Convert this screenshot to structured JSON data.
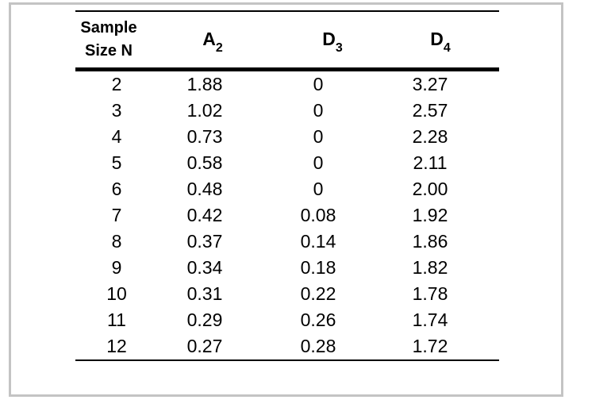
{
  "table": {
    "headers": {
      "sample_size": {
        "line1": "Sample",
        "line2": "Size N"
      },
      "a2": {
        "base": "A",
        "sub": "2"
      },
      "d3": {
        "base": "D",
        "sub": "3"
      },
      "d4": {
        "base": "D",
        "sub": "4"
      }
    }
  },
  "chart_data": {
    "type": "table",
    "columns": [
      "Sample Size N",
      "A₂",
      "D₃",
      "D₄"
    ],
    "column_keys": [
      "sample-size-n",
      "a2",
      "d3",
      "d4"
    ],
    "rows": [
      [
        "2",
        "1.88",
        "0",
        "3.27"
      ],
      [
        "3",
        "1.02",
        "0",
        "2.57"
      ],
      [
        "4",
        "0.73",
        "0",
        "2.28"
      ],
      [
        "5",
        "0.58",
        "0",
        "2.11"
      ],
      [
        "6",
        "0.48",
        "0",
        "2.00"
      ],
      [
        "7",
        "0.42",
        "0.08",
        "1.92"
      ],
      [
        "8",
        "0.37",
        "0.14",
        "1.86"
      ],
      [
        "9",
        "0.34",
        "0.18",
        "1.82"
      ],
      [
        "10",
        "0.31",
        "0.22",
        "1.78"
      ],
      [
        "11",
        "0.29",
        "0.26",
        "1.74"
      ],
      [
        "12",
        "0.27",
        "0.28",
        "1.72"
      ]
    ]
  },
  "colors": {
    "text": "#000000",
    "rule": "#000000",
    "frame_border": "#c4c4c4",
    "background": "#ffffff"
  }
}
